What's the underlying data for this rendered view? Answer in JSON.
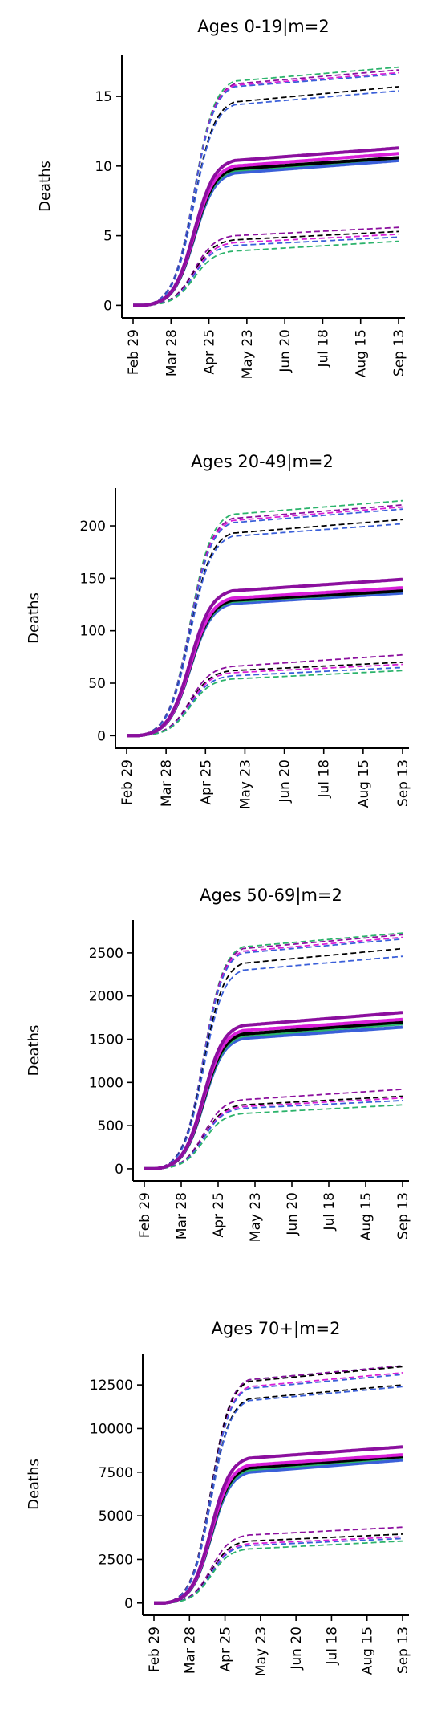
{
  "chart_data": [
    {
      "type": "line",
      "title": "Ages 0-19|m=2",
      "ylabel": "Deaths",
      "xlabel": "",
      "ylim": [
        -0.9,
        18.0
      ],
      "yticks": [
        0,
        5,
        10,
        15
      ],
      "ytick_labels": [
        "0",
        "5",
        "10",
        "15"
      ],
      "xticks": [
        "Feb 29",
        "Mar 28",
        "Apr 25",
        "May 23",
        "Jun 20",
        "Jul 18",
        "Aug 15",
        "Sep 13"
      ],
      "series": [
        {
          "color": "#3a5fd9",
          "style": "solid",
          "plateau": 9.5,
          "end": 10.4
        },
        {
          "color": "#2bb36b",
          "style": "solid",
          "plateau": 9.7,
          "end": 10.6
        },
        {
          "color": "#000000",
          "style": "solid",
          "plateau": 9.8,
          "end": 10.6
        },
        {
          "color": "#d81fd8",
          "style": "solid",
          "plateau": 10.0,
          "end": 10.9
        },
        {
          "color": "#8b0f9e",
          "style": "solid",
          "plateau": 10.4,
          "end": 11.3
        },
        {
          "color": "#2bb36b",
          "style": "dashed",
          "plateau": 16.1,
          "end": 17.1
        },
        {
          "color": "#8b0f9e",
          "style": "dashed",
          "plateau": 15.9,
          "end": 16.9
        },
        {
          "color": "#d81fd8",
          "style": "dashed",
          "plateau": 15.8,
          "end": 16.7
        },
        {
          "color": "#3a5fd9",
          "style": "dashed",
          "plateau": 15.7,
          "end": 16.6
        },
        {
          "color": "#000000",
          "style": "dashed",
          "plateau": 14.6,
          "end": 15.7
        },
        {
          "color": "#3a5fd9",
          "style": "dashed",
          "plateau": 14.4,
          "end": 15.4
        },
        {
          "color": "#8b0f9e",
          "style": "dashed",
          "plateau": 5.0,
          "end": 5.6
        },
        {
          "color": "#000000",
          "style": "dashed",
          "plateau": 4.7,
          "end": 5.3
        },
        {
          "color": "#d81fd8",
          "style": "dashed",
          "plateau": 4.5,
          "end": 5.1
        },
        {
          "color": "#3a5fd9",
          "style": "dashed",
          "plateau": 4.3,
          "end": 4.9
        },
        {
          "color": "#2bb36b",
          "style": "dashed",
          "plateau": 3.9,
          "end": 4.6
        }
      ]
    },
    {
      "type": "line",
      "title": "Ages 20-49|m=2",
      "ylabel": "Deaths",
      "xlabel": "",
      "ylim": [
        -12,
        236
      ],
      "yticks": [
        0,
        50,
        100,
        150,
        200
      ],
      "ytick_labels": [
        "0",
        "50",
        "100",
        "150",
        "200"
      ],
      "xticks": [
        "Feb 29",
        "Mar 28",
        "Apr 25",
        "May 23",
        "Jun 20",
        "Jul 18",
        "Aug 15",
        "Sep 13"
      ],
      "series": [
        {
          "color": "#3a5fd9",
          "style": "solid",
          "plateau": 126,
          "end": 136
        },
        {
          "color": "#2bb36b",
          "style": "solid",
          "plateau": 128,
          "end": 138
        },
        {
          "color": "#000000",
          "style": "solid",
          "plateau": 129,
          "end": 138
        },
        {
          "color": "#d81fd8",
          "style": "solid",
          "plateau": 131,
          "end": 141
        },
        {
          "color": "#8b0f9e",
          "style": "solid",
          "plateau": 138,
          "end": 149
        },
        {
          "color": "#2bb36b",
          "style": "dashed",
          "plateau": 211,
          "end": 224
        },
        {
          "color": "#8b0f9e",
          "style": "dashed",
          "plateau": 207,
          "end": 220
        },
        {
          "color": "#d81fd8",
          "style": "dashed",
          "plateau": 205,
          "end": 218
        },
        {
          "color": "#3a5fd9",
          "style": "dashed",
          "plateau": 203,
          "end": 216
        },
        {
          "color": "#000000",
          "style": "dashed",
          "plateau": 193,
          "end": 206
        },
        {
          "color": "#3a5fd9",
          "style": "dashed",
          "plateau": 190,
          "end": 202
        },
        {
          "color": "#8b0f9e",
          "style": "dashed",
          "plateau": 66,
          "end": 77
        },
        {
          "color": "#000000",
          "style": "dashed",
          "plateau": 62,
          "end": 70
        },
        {
          "color": "#d81fd8",
          "style": "dashed",
          "plateau": 60,
          "end": 68
        },
        {
          "color": "#3a5fd9",
          "style": "dashed",
          "plateau": 57,
          "end": 65
        },
        {
          "color": "#2bb36b",
          "style": "dashed",
          "plateau": 54,
          "end": 62
        }
      ]
    },
    {
      "type": "line",
      "title": "Ages 50-69|m=2",
      "ylabel": "Deaths",
      "xlabel": "",
      "ylim": [
        -140,
        2880
      ],
      "yticks": [
        0,
        500,
        1000,
        1500,
        2000,
        2500
      ],
      "ytick_labels": [
        "0",
        "500",
        "1000",
        "1500",
        "2000",
        "2500"
      ],
      "xticks": [
        "Feb 29",
        "Mar 28",
        "Apr 25",
        "May 23",
        "Jun 20",
        "Jul 18",
        "Aug 15",
        "Sep 13"
      ],
      "series": [
        {
          "color": "#3a5fd9",
          "style": "solid",
          "plateau": 1510,
          "end": 1640
        },
        {
          "color": "#2bb36b",
          "style": "solid",
          "plateau": 1540,
          "end": 1680
        },
        {
          "color": "#000000",
          "style": "solid",
          "plateau": 1560,
          "end": 1700
        },
        {
          "color": "#d81fd8",
          "style": "solid",
          "plateau": 1600,
          "end": 1730
        },
        {
          "color": "#8b0f9e",
          "style": "solid",
          "plateau": 1660,
          "end": 1810
        },
        {
          "color": "#2bb36b",
          "style": "dashed",
          "plateau": 2570,
          "end": 2730
        },
        {
          "color": "#8b0f9e",
          "style": "dashed",
          "plateau": 2550,
          "end": 2710
        },
        {
          "color": "#d81fd8",
          "style": "dashed",
          "plateau": 2520,
          "end": 2680
        },
        {
          "color": "#3a5fd9",
          "style": "dashed",
          "plateau": 2500,
          "end": 2660
        },
        {
          "color": "#000000",
          "style": "dashed",
          "plateau": 2380,
          "end": 2550
        },
        {
          "color": "#3a5fd9",
          "style": "dashed",
          "plateau": 2300,
          "end": 2460
        },
        {
          "color": "#8b0f9e",
          "style": "dashed",
          "plateau": 800,
          "end": 920
        },
        {
          "color": "#000000",
          "style": "dashed",
          "plateau": 740,
          "end": 840
        },
        {
          "color": "#d81fd8",
          "style": "dashed",
          "plateau": 720,
          "end": 820
        },
        {
          "color": "#3a5fd9",
          "style": "dashed",
          "plateau": 700,
          "end": 790
        },
        {
          "color": "#2bb36b",
          "style": "dashed",
          "plateau": 640,
          "end": 740
        }
      ]
    },
    {
      "type": "line",
      "title": "Ages 70+|m=2",
      "ylabel": "Deaths",
      "xlabel": "",
      "ylim": [
        -700,
        14300
      ],
      "yticks": [
        0,
        2500,
        5000,
        7500,
        10000,
        12500
      ],
      "ytick_labels": [
        "0",
        "2500",
        "5000",
        "7500",
        "10000",
        "12500"
      ],
      "xticks": [
        "Feb 29",
        "Mar 28",
        "Apr 25",
        "May 23",
        "Jun 20",
        "Jul 18",
        "Aug 15",
        "Sep 13"
      ],
      "series": [
        {
          "color": "#3a5fd9",
          "style": "solid",
          "plateau": 7500,
          "end": 8200
        },
        {
          "color": "#2bb36b",
          "style": "solid",
          "plateau": 7650,
          "end": 8350
        },
        {
          "color": "#000000",
          "style": "solid",
          "plateau": 7750,
          "end": 8400
        },
        {
          "color": "#d81fd8",
          "style": "solid",
          "plateau": 7900,
          "end": 8500
        },
        {
          "color": "#8b0f9e",
          "style": "solid",
          "plateau": 8300,
          "end": 8950
        },
        {
          "color": "#2bb36b",
          "style": "dashed",
          "plateau": 12800,
          "end": 13600
        },
        {
          "color": "#8b0f9e",
          "style": "dashed",
          "plateau": 12800,
          "end": 13600
        },
        {
          "color": "#000000",
          "style": "dashed",
          "plateau": 12700,
          "end": 13550
        },
        {
          "color": "#d81fd8",
          "style": "dashed",
          "plateau": 12400,
          "end": 13200
        },
        {
          "color": "#3a5fd9",
          "style": "dashed",
          "plateau": 12300,
          "end": 13100
        },
        {
          "color": "#000000",
          "style": "dashed",
          "plateau": 11700,
          "end": 12500
        },
        {
          "color": "#3a5fd9",
          "style": "dashed",
          "plateau": 11600,
          "end": 12400
        },
        {
          "color": "#8b0f9e",
          "style": "dashed",
          "plateau": 3900,
          "end": 4350
        },
        {
          "color": "#000000",
          "style": "dashed",
          "plateau": 3550,
          "end": 3950
        },
        {
          "color": "#d81fd8",
          "style": "dashed",
          "plateau": 3400,
          "end": 3800
        },
        {
          "color": "#3a5fd9",
          "style": "dashed",
          "plateau": 3300,
          "end": 3700
        },
        {
          "color": "#2bb36b",
          "style": "dashed",
          "plateau": 3100,
          "end": 3550
        }
      ]
    }
  ]
}
